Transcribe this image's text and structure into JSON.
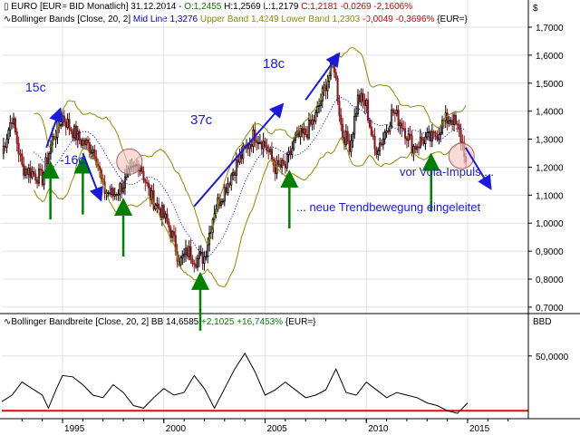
{
  "header": {
    "line1": {
      "prefix": "EURO [EUR= BID Monatlich] 31.12.2014 - ",
      "open": "O:1,2455",
      "high": "H:1,2569",
      "low": "L:1,2179",
      "close": "C:1,2181 -0,0269 -2,1606%",
      "open_color": "#008000",
      "close_color": "#cc0000"
    },
    "line2": {
      "name": "Bollinger Bands [Close, 20, 2]",
      "mid": "Mid Line 1,3276",
      "upper": "Upper Band 1,4249",
      "lower": "Lower Band 1,2303",
      "change": "-0,0049 -0,3696%",
      "suffix": "{EUR=}",
      "mid_color": "#0000cc",
      "band_color": "#8b8b00",
      "change_color": "#cc0000"
    },
    "currency_symbol": "$"
  },
  "sub_header": {
    "text_main": "Bollinger Bandbreite [Close, 20, 2] BB 14,6585 ",
    "text_change": "+2,1025 +16,7453%",
    "text_suffix": " {EUR=}",
    "change_color": "#008000",
    "axis_title": "BBD"
  },
  "annotations": {
    "a15c": "15c",
    "a16c": "-16c",
    "a37c": "37c",
    "a18c": "18c",
    "vola": "vor Vola-Impuls ...",
    "trend": "... neue Trendbewegung eingeleitet",
    "text_color": "#1a1adf"
  },
  "colors": {
    "up_candle": "#000000",
    "down_candle": "#8b1a1a",
    "band": "#8b8b00",
    "midline": "#0000cc",
    "arrow_green": "#008000",
    "arrow_blue": "#1a1adf",
    "threshold": "#ee0000",
    "circle_fill": "#f4c6c6",
    "circle_stroke": "#b06060"
  },
  "chart_data": [
    {
      "type": "candlestick",
      "title": "EURO [EUR= BID Monatlich]",
      "ylim": [
        0.69,
        1.7
      ],
      "y_ticks": [
        "0,7000",
        "0,8000",
        "0,9000",
        "1,0000",
        "1,1000",
        "1,2000",
        "1,3000",
        "1,4000",
        "1,5000",
        "1,6000",
        "1,7000"
      ],
      "x_ticks": [
        "1995",
        "2000",
        "2005",
        "2010",
        "2015"
      ],
      "x_range": [
        1992.0,
        2018.0
      ],
      "close_anchors": {
        "x": [
          1992.0,
          1992.5,
          1993.0,
          1993.5,
          1994.0,
          1994.5,
          1995.0,
          1995.3,
          1995.8,
          1996.2,
          1996.6,
          1997.0,
          1997.5,
          1998.0,
          1998.4,
          1998.8,
          1999.3,
          1999.8,
          2000.3,
          2000.8,
          2001.2,
          2001.6,
          2002.0,
          2002.5,
          2003.0,
          2003.5,
          2004.0,
          2004.5,
          2005.0,
          2005.5,
          2006.0,
          2006.5,
          2007.0,
          2007.5,
          2008.0,
          2008.4,
          2008.8,
          2009.2,
          2009.6,
          2010.0,
          2010.4,
          2010.8,
          2011.3,
          2011.8,
          2012.3,
          2012.8,
          2013.3,
          2013.8,
          2014.2,
          2014.6,
          2014.99
        ],
        "y": [
          1.25,
          1.38,
          1.2,
          1.18,
          1.16,
          1.3,
          1.38,
          1.35,
          1.3,
          1.28,
          1.26,
          1.12,
          1.1,
          1.14,
          1.18,
          1.22,
          1.1,
          1.05,
          0.98,
          0.86,
          0.9,
          0.87,
          0.88,
          1.05,
          1.12,
          1.2,
          1.26,
          1.32,
          1.28,
          1.2,
          1.2,
          1.3,
          1.32,
          1.38,
          1.5,
          1.57,
          1.32,
          1.28,
          1.45,
          1.42,
          1.26,
          1.3,
          1.4,
          1.35,
          1.27,
          1.3,
          1.3,
          1.36,
          1.38,
          1.32,
          1.22
        ]
      },
      "bollinger": {
        "period": 20,
        "stddev": 2,
        "mid_last": 1.3276,
        "upper_last": 1.4249,
        "lower_last": 1.2303
      },
      "green_arrow_dates": [
        1994.4,
        1996.0,
        1998.0,
        2001.8,
        2006.2,
        2013.2
      ],
      "circle_dates": [
        {
          "x": 1998.3,
          "y": 1.22
        },
        {
          "x": 2014.7,
          "y": 1.24
        }
      ]
    },
    {
      "type": "line",
      "title": "Bollinger Bandbreite [Close, 20, 2]",
      "x": [
        1992.0,
        1992.5,
        1993.0,
        1993.5,
        1994.0,
        1994.3,
        1994.7,
        1995.0,
        1995.5,
        1996.0,
        1996.5,
        1997.0,
        1997.5,
        1998.0,
        1998.5,
        1999.0,
        1999.5,
        2000.0,
        2000.5,
        2001.0,
        2001.5,
        2002.0,
        2002.5,
        2003.0,
        2003.5,
        2004.0,
        2004.5,
        2005.0,
        2005.5,
        2006.0,
        2006.5,
        2007.0,
        2007.5,
        2008.0,
        2008.5,
        2009.0,
        2009.5,
        2010.0,
        2010.5,
        2011.0,
        2011.5,
        2012.0,
        2012.5,
        2013.0,
        2013.5,
        2014.0,
        2014.5,
        2015.0
      ],
      "y": [
        15,
        20,
        30,
        25,
        20,
        10,
        25,
        35,
        34,
        28,
        20,
        18,
        28,
        22,
        12,
        10,
        18,
        25,
        20,
        22,
        35,
        25,
        10,
        25,
        40,
        52,
        38,
        20,
        24,
        30,
        24,
        18,
        20,
        24,
        40,
        22,
        20,
        30,
        24,
        18,
        22,
        20,
        18,
        14,
        12,
        8,
        6,
        14
      ],
      "threshold": 8,
      "ylim": [
        4,
        70
      ],
      "y_ticks": [
        "50,0000"
      ],
      "x_ticks": [
        "1995",
        "2000",
        "2005",
        "2010",
        "2015"
      ],
      "ylabel": "BBD"
    }
  ]
}
